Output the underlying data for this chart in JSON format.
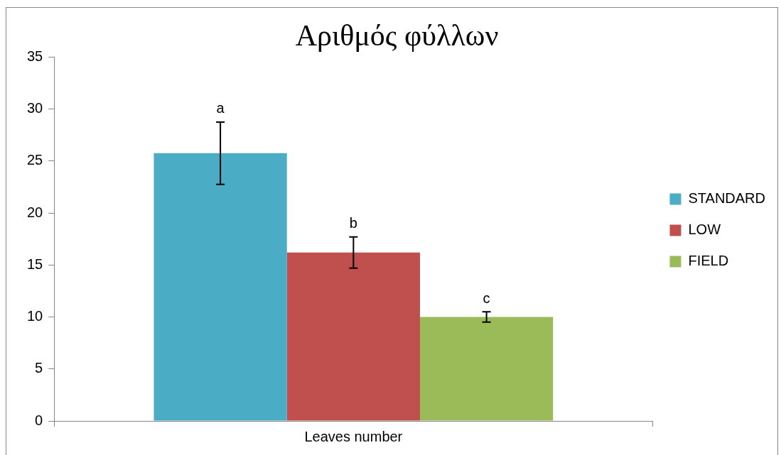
{
  "chart_data": {
    "type": "bar",
    "title": "Αριθμός φύλλων",
    "categories": [
      "Leaves number"
    ],
    "series": [
      {
        "name": "STANDARD",
        "color": "#4bacc6",
        "values": [
          25.75
        ],
        "errors": [
          3
        ]
      },
      {
        "name": "LOW",
        "color": "#c0504d",
        "values": [
          16.2
        ],
        "errors": [
          1.5
        ]
      },
      {
        "name": "FIELD",
        "color": "#9bbb59",
        "values": [
          10
        ],
        "errors": [
          0.5
        ]
      }
    ],
    "ylim": [
      0,
      35
    ],
    "yticks": [
      0,
      5,
      10,
      15,
      20,
      25,
      30,
      35
    ],
    "grid": false,
    "legend": "right",
    "annotations": [
      "a",
      "b",
      "c"
    ]
  }
}
